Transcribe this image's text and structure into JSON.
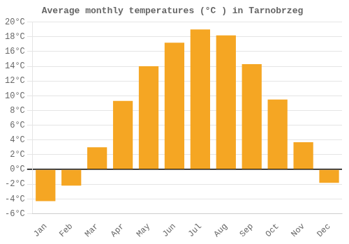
{
  "chart_data": {
    "type": "bar",
    "title": "Average monthly temperatures (°C ) in Tarnobrzeg",
    "categories": [
      "Jan",
      "Feb",
      "Mar",
      "Apr",
      "May",
      "Jun",
      "Jul",
      "Aug",
      "Sep",
      "Oct",
      "Nov",
      "Dec"
    ],
    "values": [
      -4.3,
      -2.2,
      3.0,
      9.3,
      14.0,
      17.2,
      19.0,
      18.2,
      14.3,
      9.5,
      3.7,
      -1.8
    ],
    "color": "#F5A623",
    "ylim": [
      -6,
      20
    ],
    "yticks": [
      {
        "value": -6,
        "label": "-6°C"
      },
      {
        "value": -4,
        "label": "-4°C"
      },
      {
        "value": -2,
        "label": "-2°C"
      },
      {
        "value": 0,
        "label": "0°C"
      },
      {
        "value": 2,
        "label": "2°C"
      },
      {
        "value": 4,
        "label": "4°C"
      },
      {
        "value": 6,
        "label": "6°C"
      },
      {
        "value": 8,
        "label": "8°C"
      },
      {
        "value": 10,
        "label": "10°C"
      },
      {
        "value": 12,
        "label": "12°C"
      },
      {
        "value": 14,
        "label": "14°C"
      },
      {
        "value": 16,
        "label": "16°C"
      },
      {
        "value": 18,
        "label": "18°C"
      },
      {
        "value": 20,
        "label": "20°C"
      }
    ],
    "grid": true
  }
}
